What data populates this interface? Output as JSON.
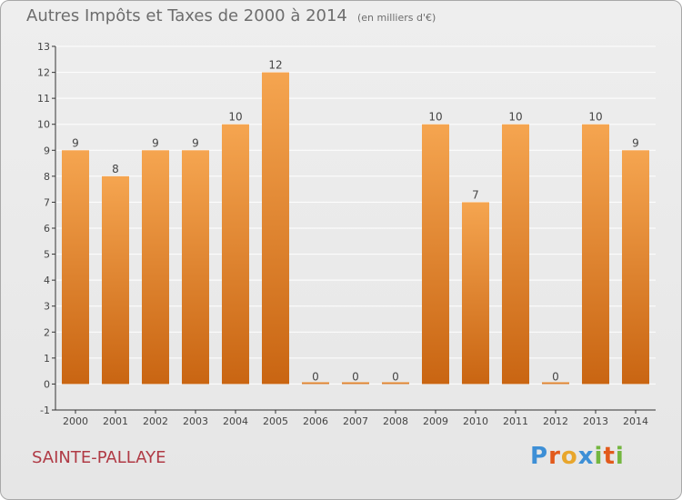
{
  "title": {
    "main": "Autres Impôts et Taxes de 2000 à 2014",
    "unit": "(en milliers d'€)"
  },
  "place": "SAINTE-PALLAYE",
  "brand": {
    "text": "Proxiti",
    "colors": [
      "#3d8fd6",
      "#e25a1c",
      "#e8a62c",
      "#3d8fd6",
      "#74b63f",
      "#e25a1c",
      "#74b63f"
    ]
  },
  "chart_data": {
    "type": "bar",
    "categories": [
      "2000",
      "2001",
      "2002",
      "2003",
      "2004",
      "2005",
      "2006",
      "2007",
      "2008",
      "2009",
      "2010",
      "2011",
      "2012",
      "2013",
      "2014"
    ],
    "values": [
      9,
      8,
      9,
      9,
      10,
      12,
      0,
      0,
      0,
      10,
      7,
      10,
      0,
      10,
      9
    ],
    "ylim": [
      -1,
      13
    ],
    "yticks": [
      -1,
      0,
      1,
      2,
      3,
      4,
      5,
      6,
      7,
      8,
      9,
      10,
      11,
      12,
      13
    ],
    "grid": true,
    "colors": {
      "bar_top": "#f5a550",
      "bar_bottom": "#c96512",
      "grid": "#ffffff",
      "axis": "#333333",
      "text": "#444444"
    }
  }
}
